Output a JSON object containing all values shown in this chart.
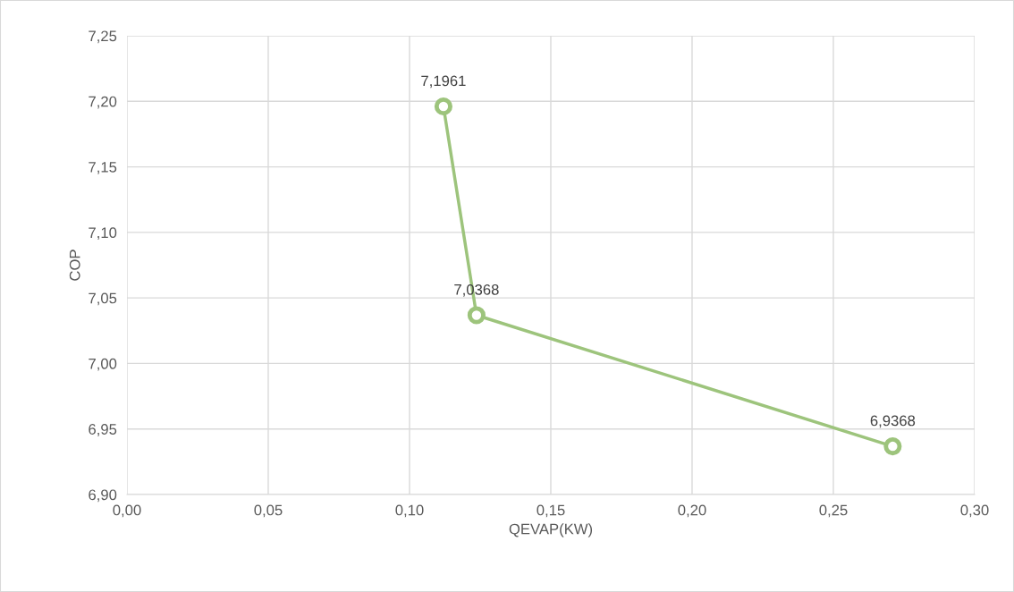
{
  "chart_data": {
    "type": "line",
    "xlabel": "QEVAP(KW)",
    "ylabel": "COP",
    "x": [
      0.112,
      0.1237,
      0.271
    ],
    "series": [
      {
        "color": "#9dc47c",
        "values": [
          7.1961,
          7.0368,
          6.9368
        ],
        "value_labels": [
          "7,1961",
          "7,0368",
          "6,9368"
        ]
      }
    ],
    "marker": "circle",
    "line_style": "solid",
    "grid": true,
    "xlim": [
      0,
      0.3
    ],
    "ylim": [
      6.9,
      7.25
    ],
    "xticks": [
      {
        "value": 0,
        "label": "0,00"
      },
      {
        "value": 0.05,
        "label": "0,05"
      },
      {
        "value": 0.1,
        "label": "0,10"
      },
      {
        "value": 0.15,
        "label": "0,15"
      },
      {
        "value": 0.2,
        "label": "0,20"
      },
      {
        "value": 0.25,
        "label": "0,25"
      },
      {
        "value": 0.3,
        "label": "0,30"
      }
    ],
    "yticks": [
      {
        "value": 6.9,
        "label": "6,90"
      },
      {
        "value": 6.95,
        "label": "6,95"
      },
      {
        "value": 7.0,
        "label": "7,00"
      },
      {
        "value": 7.05,
        "label": "7,05"
      },
      {
        "value": 7.1,
        "label": "7,10"
      },
      {
        "value": 7.15,
        "label": "7,15"
      },
      {
        "value": 7.2,
        "label": "7,20"
      },
      {
        "value": 7.25,
        "label": "7,25"
      }
    ]
  }
}
